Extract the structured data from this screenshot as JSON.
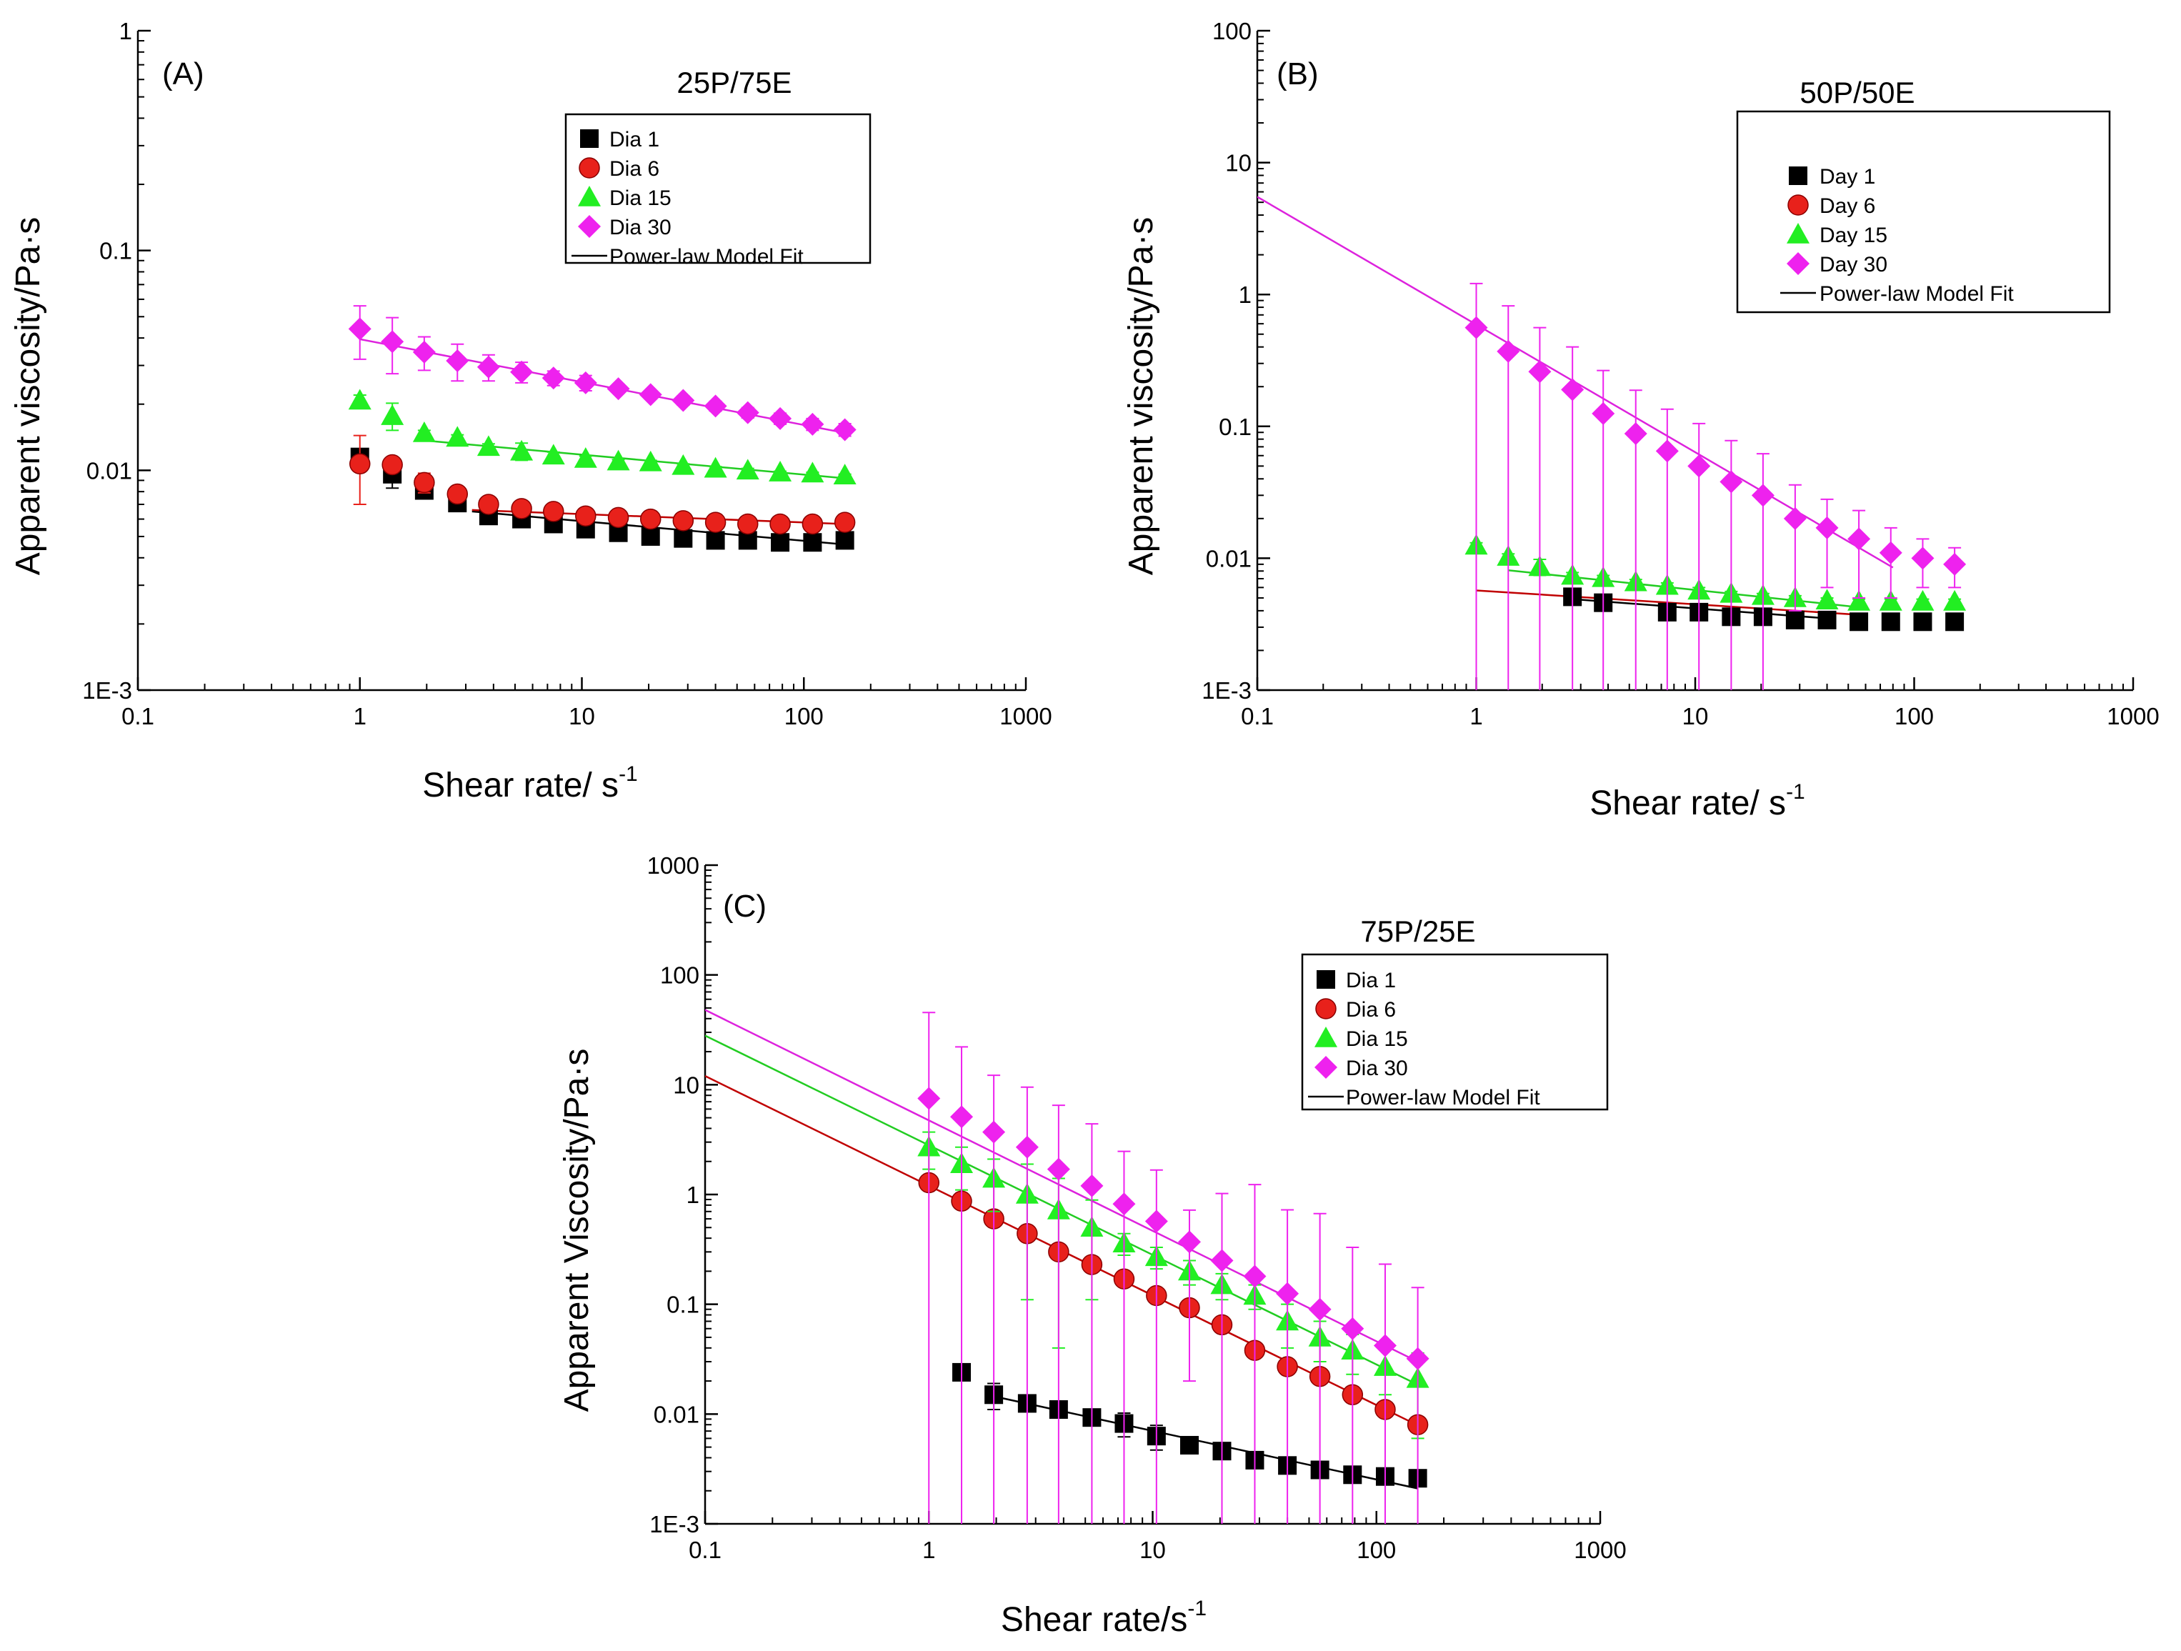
{
  "chart_data": [
    {
      "panel": "(A)",
      "type": "scatter",
      "title": "25P/75E",
      "xlabel": "Shear rate/ s",
      "xlabel_sup": "-1",
      "ylabel": "Apparent viscosity/Pa·s",
      "xscale": "log",
      "yscale": "log",
      "xlim": [
        0.1,
        1000
      ],
      "ylim": [
        0.001,
        1
      ],
      "xticks": [
        0.1,
        1,
        10,
        100,
        1000
      ],
      "xtick_labels": [
        "0.1",
        "1",
        "10",
        "100",
        "1000"
      ],
      "yticks": [
        0.001,
        0.01,
        0.1,
        1
      ],
      "ytick_labels": [
        "1E-3",
        "0.01",
        "0.1",
        "1"
      ],
      "legend": "top-center",
      "fit_label": "Power-law Model Fit",
      "x": [
        1,
        1.4,
        1.95,
        2.75,
        3.8,
        5.35,
        7.45,
        10.4,
        14.6,
        20.4,
        28.6,
        40,
        55.9,
        78.2,
        109.4,
        153
      ],
      "series": [
        {
          "name": "Dia 1",
          "marker": "square",
          "color": "#000000",
          "values": [
            0.0115,
            0.0096,
            0.0081,
            0.0071,
            0.0062,
            0.006,
            0.0057,
            0.0054,
            0.0052,
            0.005,
            0.0049,
            0.0048,
            0.0048,
            0.0047,
            0.0047,
            0.0048
          ],
          "error": [
            0.0005,
            0.0013,
            0.0004,
            0.0003,
            0.0002,
            0.0002,
            0.0004,
            0.0002,
            0.0001,
            0.0001,
            0.0001,
            0.0001,
            0.0001,
            0.0001,
            0.0001,
            0.0001
          ],
          "fit": {
            "x": [
              3.2,
              153
            ],
            "y": [
              0.0065,
              0.0046
            ],
            "color": "#000000"
          }
        },
        {
          "name": "Dia 6",
          "marker": "circle",
          "color": "#e8211b",
          "values": [
            0.0107,
            0.0106,
            0.0088,
            0.0078,
            0.007,
            0.0067,
            0.0065,
            0.0062,
            0.0061,
            0.006,
            0.0059,
            0.0058,
            0.0057,
            0.0057,
            0.0057,
            0.0058
          ],
          "error": [
            0.0037,
            0.0004,
            0.0009,
            0.0003,
            0.0003,
            0.0003,
            0.0002,
            0.0002,
            0.0002,
            0.0002,
            0.0001,
            0.0001,
            0.0001,
            0.0001,
            0.0001,
            0.0001
          ],
          "fit": {
            "x": [
              3.2,
              153
            ],
            "y": [
              0.0066,
              0.0057
            ],
            "color": "#c00000"
          }
        },
        {
          "name": "Dia 15",
          "marker": "triangle",
          "color": "#22ee22",
          "values": [
            0.0208,
            0.0177,
            0.0148,
            0.0141,
            0.0128,
            0.0122,
            0.0117,
            0.0113,
            0.011,
            0.0109,
            0.0105,
            0.0102,
            0.01,
            0.0098,
            0.0097,
            0.0095
          ],
          "error": [
            0.0012,
            0.0025,
            0.0004,
            0.0004,
            0.0004,
            0.0011,
            0.0004,
            0.0003,
            0.0002,
            0.0002,
            0.0002,
            0.0002,
            0.0002,
            0.0001,
            0.0001,
            0.0001
          ],
          "fit": {
            "x": [
              1.9,
              153
            ],
            "y": [
              0.0137,
              0.0092
            ],
            "color": "#22cc22"
          }
        },
        {
          "name": "Dia 30",
          "marker": "diamond",
          "color": "#ee22ee",
          "values": [
            0.044,
            0.0385,
            0.0345,
            0.0315,
            0.0295,
            0.028,
            0.0263,
            0.025,
            0.0235,
            0.0221,
            0.0208,
            0.0196,
            0.0183,
            0.0172,
            0.0162,
            0.0153
          ],
          "error": [
            0.012,
            0.011,
            0.006,
            0.006,
            0.004,
            0.003,
            0.002,
            0.002,
            0.001,
            0.001,
            0.001,
            0.001,
            0.001,
            0.001,
            0.001,
            0.001
          ],
          "fit": {
            "x": [
              1,
              153
            ],
            "y": [
              0.0395,
              0.0148
            ],
            "color": "#dd22dd"
          }
        }
      ]
    },
    {
      "panel": "(B)",
      "type": "scatter",
      "title": "50P/50E",
      "xlabel": "Shear rate/ s",
      "xlabel_sup": "-1",
      "ylabel": "Apparent viscosity/Pa·s",
      "xscale": "log",
      "yscale": "log",
      "xlim": [
        0.1,
        1000
      ],
      "ylim": [
        0.001,
        100
      ],
      "xticks": [
        0.1,
        1,
        10,
        100,
        1000
      ],
      "xtick_labels": [
        "0.1",
        "1",
        "10",
        "100",
        "1000"
      ],
      "yticks": [
        0.001,
        0.01,
        0.1,
        1,
        10,
        100
      ],
      "ytick_labels": [
        "1E-3",
        "0.01",
        "0.1",
        "1",
        "10",
        "100"
      ],
      "legend": "top-right",
      "fit_label": "Power-law Model Fit",
      "x": [
        1,
        1.4,
        1.95,
        2.75,
        3.8,
        5.35,
        7.45,
        10.4,
        14.6,
        20.4,
        28.6,
        40,
        55.9,
        78.2,
        109.4,
        153
      ],
      "series": [
        {
          "name": "Day 1",
          "marker": "square",
          "color": "#000000",
          "values": [
            null,
            null,
            null,
            0.0051,
            0.0046,
            null,
            0.0039,
            0.0039,
            0.0036,
            0.0036,
            0.0034,
            0.0034,
            0.0033,
            0.0033,
            0.0033,
            0.0033
          ],
          "error": [
            0,
            0,
            0,
            0.0002,
            0.0002,
            0,
            0.0002,
            0.0002,
            0.0001,
            0.0001,
            0.0001,
            0.0001,
            0.0001,
            0.0001,
            0.0001,
            0.0001
          ],
          "fit": {
            "x": [
              2.75,
              40
            ],
            "y": [
              0.0049,
              0.0035
            ],
            "color": "#000000"
          }
        },
        {
          "name": "Day 6",
          "marker": "circle",
          "color": "#e8211b",
          "values": [
            null,
            null,
            null,
            null,
            null,
            null,
            null,
            null,
            null,
            null,
            null,
            null,
            null,
            null,
            null,
            null
          ],
          "error": [
            0,
            0,
            0,
            0,
            0,
            0,
            0,
            0,
            0,
            0,
            0,
            0,
            0,
            0,
            0,
            0
          ],
          "fit": {
            "x": [
              1,
              60
            ],
            "y": [
              0.0057,
              0.0037
            ],
            "color": "#c00000"
          }
        },
        {
          "name": "Day 15",
          "marker": "triangle",
          "color": "#22ee22",
          "values": [
            0.0125,
            0.0103,
            0.0086,
            0.0074,
            0.0071,
            0.0066,
            0.0062,
            0.0057,
            0.0054,
            0.0052,
            0.005,
            0.0048,
            0.0047,
            0.0047,
            0.0047,
            0.0047
          ],
          "error": [
            0.0006,
            0.0005,
            0.0012,
            0.0004,
            0.0003,
            0.0003,
            0.0003,
            0.0003,
            0.0002,
            0.0002,
            0.0002,
            0.0002,
            0.0002,
            0.0002,
            0.0002,
            0.0002
          ],
          "fit": {
            "x": [
              1.4,
              60
            ],
            "y": [
              0.0081,
              0.0042
            ],
            "color": "#22cc22"
          }
        },
        {
          "name": "Day 30",
          "marker": "diamond",
          "color": "#ee22ee",
          "values": [
            0.56,
            0.37,
            0.26,
            0.19,
            0.125,
            0.088,
            0.065,
            0.05,
            0.038,
            0.03,
            0.02,
            0.017,
            0.014,
            0.011,
            0.01,
            0.009
          ],
          "error": [
            0.65,
            0.45,
            0.3,
            0.21,
            0.14,
            0.1,
            0.07,
            0.055,
            0.04,
            0.032,
            0.016,
            0.011,
            0.009,
            0.006,
            0.004,
            0.003
          ],
          "fit": {
            "x": [
              0.1,
              80
            ],
            "y": [
              5.5,
              0.0085
            ],
            "color": "#dd22dd"
          }
        }
      ]
    },
    {
      "panel": "(C)",
      "type": "scatter",
      "title": "75P/25E",
      "xlabel": "Shear rate/s",
      "xlabel_sup": "-1",
      "ylabel": "Apparent Viscosity/Pa·s",
      "xscale": "log",
      "yscale": "log",
      "xlim": [
        0.1,
        1000
      ],
      "ylim": [
        0.001,
        1000
      ],
      "xticks": [
        0.1,
        1,
        10,
        100,
        1000
      ],
      "xtick_labels": [
        "0.1",
        "1",
        "10",
        "100",
        "1000"
      ],
      "yticks": [
        0.001,
        0.01,
        0.1,
        1,
        10,
        100,
        1000
      ],
      "ytick_labels": [
        "1E-3",
        "0.01",
        "0.1",
        "1",
        "10",
        "100",
        "1000"
      ],
      "legend": "top-right",
      "fit_label": "Power-law Model Fit",
      "x": [
        1,
        1.4,
        1.95,
        2.75,
        3.8,
        5.35,
        7.45,
        10.4,
        14.6,
        20.4,
        28.6,
        40,
        55.9,
        78.2,
        109.4,
        153
      ],
      "series": [
        {
          "name": "Dia 1",
          "marker": "square",
          "color": "#000000",
          "values": [
            null,
            0.024,
            0.015,
            0.0125,
            0.011,
            0.0093,
            0.0082,
            0.0063,
            0.0052,
            0.0046,
            0.0038,
            0.0034,
            0.0031,
            0.0028,
            0.0027,
            0.0026
          ],
          "error": [
            0,
            0.003,
            0.004,
            0.001,
            0.001,
            0.001,
            0.002,
            0.0016,
            0.0005,
            0.0004,
            0.0003,
            0.0004,
            0.0002,
            0.0002,
            0.0002,
            0.0002
          ],
          "fit": {
            "x": [
              1.95,
              153
            ],
            "y": [
              0.0145,
              0.0021
            ],
            "color": "#000000"
          }
        },
        {
          "name": "Dia 6",
          "marker": "circle",
          "color": "#e8211b",
          "values": [
            1.28,
            0.87,
            0.6,
            0.44,
            0.3,
            0.23,
            0.17,
            0.12,
            0.093,
            0.065,
            0.038,
            0.027,
            0.022,
            0.015,
            0.011,
            0.008
          ],
          "error": [
            0.1,
            0.08,
            0.05,
            0.04,
            0.03,
            0.02,
            0.015,
            0.01,
            0.008,
            0.005,
            0.003,
            0.002,
            0.002,
            0.001,
            0.001,
            0.001
          ],
          "fit": {
            "x": [
              0.1,
              153
            ],
            "y": [
              12,
              0.0079
            ],
            "color": "#c00000"
          }
        },
        {
          "name": "Dia 15",
          "marker": "triangle",
          "color": "#22ee22",
          "values": [
            2.7,
            1.9,
            1.4,
            1.0,
            0.72,
            0.5,
            0.36,
            0.27,
            0.2,
            0.15,
            0.12,
            0.07,
            0.05,
            0.038,
            0.027,
            0.021
          ],
          "error": [
            1.0,
            0.8,
            0.7,
            0.89,
            0.68,
            0.39,
            0.08,
            0.06,
            0.05,
            0.04,
            0.03,
            0.03,
            0.02,
            0.015,
            0.012,
            0.015
          ],
          "fit": {
            "x": [
              0.1,
              153
            ],
            "y": [
              28,
              0.0185
            ],
            "color": "#22cc22"
          }
        },
        {
          "name": "Dia 30",
          "marker": "diamond",
          "color": "#ee22ee",
          "values": [
            7.5,
            5.1,
            3.7,
            2.7,
            1.7,
            1.2,
            0.82,
            0.57,
            0.37,
            0.25,
            0.18,
            0.125,
            0.09,
            0.06,
            0.042,
            0.032
          ],
          "error": [
            38,
            17,
            8.5,
            6.8,
            4.8,
            3.2,
            1.65,
            1.1,
            0.35,
            0.77,
            1.05,
            0.6,
            0.58,
            0.27,
            0.19,
            0.11
          ],
          "fit": {
            "x": [
              0.1,
              153
            ],
            "y": [
              48,
              0.03
            ],
            "color": "#dd22dd"
          }
        }
      ]
    }
  ]
}
